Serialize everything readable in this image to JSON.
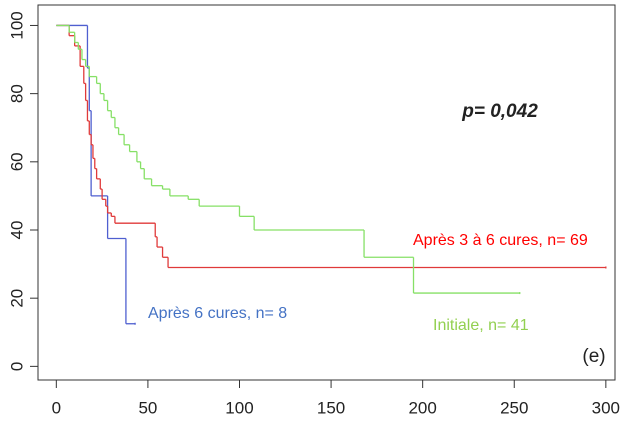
{
  "chart_data": {
    "type": "step",
    "xlim": [
      -10,
      305
    ],
    "ylim": [
      -4,
      106
    ],
    "xticks": [
      0,
      50,
      100,
      150,
      200,
      250,
      300
    ],
    "yticks": [
      0,
      20,
      40,
      60,
      80,
      100
    ],
    "annotations": [
      "p= 0,042",
      "(e)"
    ],
    "series": [
      {
        "name": "Après 6 cures, n= 8",
        "color": "#4f5fd0",
        "x": [
          0,
          17,
          18,
          19,
          28,
          38,
          43
        ],
        "values": [
          100,
          87.5,
          75,
          50,
          37.5,
          12.5,
          12.5
        ]
      },
      {
        "name": "Après 3 à 6 cures, n= 69",
        "color": "#e03a3a",
        "x": [
          0,
          7,
          10,
          13,
          15,
          16,
          17,
          18,
          19,
          20,
          21,
          22,
          24,
          25,
          27,
          28,
          30,
          32,
          54,
          55,
          58,
          61,
          300
        ],
        "values": [
          100,
          97,
          94,
          88,
          83,
          78,
          72,
          68,
          65,
          61,
          58,
          55,
          52,
          49,
          47,
          45,
          44,
          42,
          38,
          35,
          32,
          29,
          29
        ]
      },
      {
        "name": "Initiale, n= 41",
        "color": "#86e066",
        "x": [
          0,
          7,
          10,
          12,
          14,
          16,
          18,
          22,
          24,
          26,
          28,
          30,
          32,
          34,
          37,
          40,
          44,
          46,
          48,
          52,
          58,
          62,
          72,
          78,
          100,
          108,
          168,
          195,
          253
        ],
        "values": [
          100,
          98,
          95,
          93,
          90,
          88,
          85,
          83,
          80,
          78,
          75,
          73,
          70,
          68,
          65,
          63,
          60,
          58,
          55,
          53,
          52,
          50,
          49,
          47,
          44,
          40,
          32,
          21.5,
          21.5
        ]
      }
    ]
  }
}
